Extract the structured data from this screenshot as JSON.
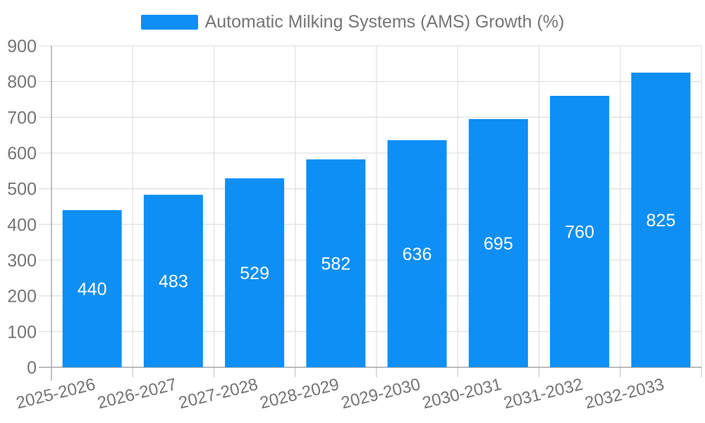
{
  "legend": {
    "label": "Automatic Milking Systems (AMS) Growth (%)"
  },
  "chart_data": {
    "type": "bar",
    "title": "Automatic Milking Systems (AMS) Growth (%)",
    "categories": [
      "2025-2026",
      "2026-2027",
      "2027-2028",
      "2028-2029",
      "2029-2030",
      "2030-2031",
      "2031-2032",
      "2032-2033"
    ],
    "values": [
      440,
      483,
      529,
      582,
      636,
      695,
      760,
      825
    ],
    "series": [
      {
        "name": "Automatic Milking Systems (AMS) Growth (%)",
        "values": [
          440,
          483,
          529,
          582,
          636,
          695,
          760,
          825
        ]
      }
    ],
    "xlabel": "",
    "ylabel": "",
    "ylim": [
      0,
      900
    ],
    "yticks": [
      0,
      100,
      200,
      300,
      400,
      500,
      600,
      700,
      800,
      900
    ],
    "grid": true,
    "legend_position": "top",
    "value_labels": "inside-center",
    "x_tick_rotation_deg": -14,
    "colors": {
      "bar": "#0d8ff5",
      "value_label": "#ffffff",
      "axis_text": "#757575",
      "axis_line": "#a6a6a6",
      "gridline": "#e2e2e2",
      "tick": "#cccccc"
    }
  }
}
